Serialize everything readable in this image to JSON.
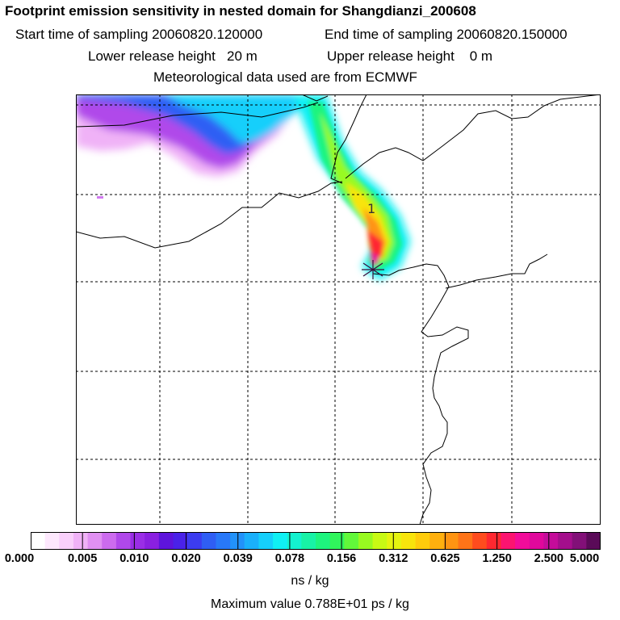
{
  "header": {
    "title": "Footprint emission sensitivity in nested domain for Shangdianzi_200608",
    "start_label": "Start time of sampling 20060820.120000",
    "end_label": "End time of sampling 20060820.150000",
    "lower_label": "Lower release height   20 m",
    "upper_label": "Upper release height    0 m",
    "met_label": "Meteorological data used are from ECMWF"
  },
  "map": {
    "site_number": "1"
  },
  "colorbar": {
    "ticks": [
      "0.000",
      "0.005",
      "0.010",
      "0.020",
      "0.039",
      "0.078",
      "0.156",
      "0.312",
      "0.625",
      "1.250",
      "2.500",
      "5.000"
    ],
    "colors": [
      "#ffffff",
      "#fde8fd",
      "#f9d0fb",
      "#f0b2f7",
      "#e090f2",
      "#cc6bee",
      "#b048ea",
      "#9a2ee6",
      "#8a20e0",
      "#5e14dc",
      "#4a22e8",
      "#3c3cf0",
      "#2f5ef4",
      "#2878f8",
      "#2292fa",
      "#1ab0fb",
      "#16cffb",
      "#10f0f3",
      "#14f2cf",
      "#18f2a6",
      "#1ef47e",
      "#30f55c",
      "#62f83a",
      "#98fa20",
      "#c8fa14",
      "#e6f410",
      "#f8e40c",
      "#ffcc0c",
      "#ffb00e",
      "#ff9412",
      "#ff7418",
      "#ff4c1e",
      "#ff2830",
      "#fb1470",
      "#f20c9a",
      "#e0089c",
      "#c40c9a",
      "#a40e8c",
      "#821078",
      "#5a0a58"
    ],
    "units": "ns / kg"
  },
  "footer": {
    "max_value": "Maximum value  0.788E+01 ps / kg"
  }
}
